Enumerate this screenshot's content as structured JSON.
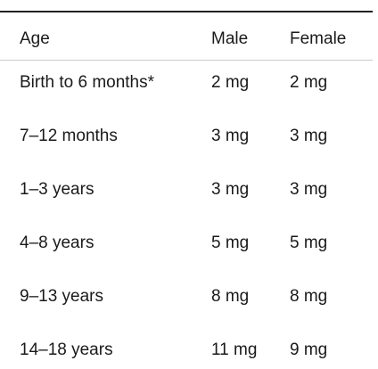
{
  "table": {
    "header": [
      "Age",
      "Male",
      "Female"
    ],
    "rows": [
      [
        "Birth to 6 months*",
        "2 mg",
        "2 mg"
      ],
      [
        "7–12 months",
        "3 mg",
        "3 mg"
      ],
      [
        "1–3 years",
        "3 mg",
        "3 mg"
      ],
      [
        "4–8 years",
        "5 mg",
        "5 mg"
      ],
      [
        "9–13 years",
        "8 mg",
        "8 mg"
      ],
      [
        "14–18 years",
        "11 mg",
        "9 mg"
      ]
    ]
  }
}
